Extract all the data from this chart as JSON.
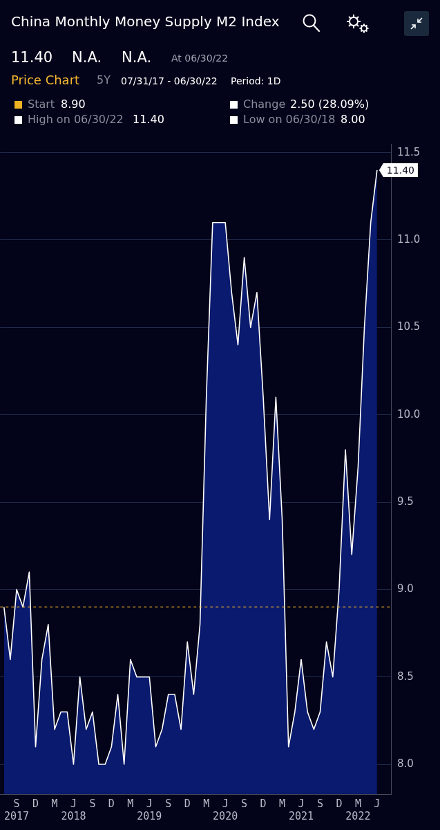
{
  "chart_data": {
    "type": "area",
    "title": "China Monthly Money Supply M2 Index",
    "annotations": [
      "11.40",
      "N.A.",
      "N.A.",
      "At 06/30/22",
      "Price Chart",
      "5Y",
      "07/31/17 - 06/30/22",
      "Period: 1D",
      "Start",
      "8.90",
      "Change",
      "2.50 (28.09%)",
      "High on 06/30/22",
      "11.40",
      "Low on 06/30/18",
      "8.00"
    ],
    "categories": [
      null,
      null,
      "S\n2017",
      null,
      null,
      "D",
      null,
      null,
      "M",
      null,
      null,
      "J\n2018",
      null,
      null,
      "S",
      null,
      null,
      "D",
      null,
      null,
      "M",
      null,
      null,
      "J\n2019",
      null,
      null,
      "S",
      null,
      null,
      "D",
      null,
      null,
      "M",
      null,
      null,
      "J\n2020",
      null,
      null,
      "S",
      null,
      null,
      "D",
      null,
      null,
      "M",
      null,
      null,
      "J\n2021",
      null,
      null,
      "S",
      null,
      null,
      "D",
      null,
      null,
      "M\n2022",
      null,
      null,
      "J"
    ],
    "series": [
      {
        "color": "#0a1a6e",
        "values": [
          8.9,
          8.6,
          9.0,
          8.9,
          9.1,
          8.1,
          8.6,
          8.8,
          8.2,
          8.3,
          8.3,
          8.0,
          8.5,
          8.2,
          8.3,
          8.0,
          8.0,
          8.1,
          8.4,
          8.0,
          8.6,
          8.5,
          8.5,
          8.5,
          8.1,
          8.2,
          8.4,
          8.4,
          8.2,
          8.7,
          8.4,
          8.8,
          10.1,
          11.1,
          11.1,
          11.1,
          10.7,
          10.4,
          10.9,
          10.5,
          10.7,
          10.1,
          9.4,
          10.1,
          9.4,
          8.1,
          8.3,
          8.6,
          8.3,
          8.2,
          8.3,
          8.7,
          8.5,
          9.0,
          9.8,
          9.2,
          9.7,
          10.5,
          11.1,
          11.4
        ],
        "value_labels": [
          null,
          null,
          null,
          null,
          null,
          null,
          null,
          null,
          null,
          null,
          null,
          null,
          null,
          null,
          null,
          null,
          null,
          null,
          null,
          null,
          null,
          null,
          null,
          null,
          null,
          null,
          null,
          null,
          null,
          null,
          null,
          null,
          null,
          null,
          null,
          null,
          null,
          null,
          null,
          null,
          null,
          null,
          null,
          null,
          null,
          null,
          null,
          null,
          null,
          null,
          null,
          null,
          null,
          null,
          null,
          null,
          null,
          null,
          null,
          "11.40"
        ]
      }
    ],
    "ylim": [
      7.83,
      11.55
    ],
    "yticks": [
      {
        "value": 8,
        "label": "8.0"
      },
      {
        "value": 8.5,
        "label": "8.5"
      },
      {
        "value": 9,
        "label": "9.0"
      },
      {
        "value": 9.5,
        "label": "9.5"
      },
      {
        "value": 10,
        "label": "10.0"
      },
      {
        "value": 10.5,
        "label": "10.5"
      },
      {
        "value": 11,
        "label": "11.0"
      },
      {
        "value": 11.5,
        "label": "11.5"
      }
    ],
    "ref_lines": [
      {
        "axis": "y",
        "value": 8.9,
        "color": "#f0b323",
        "line_style": "dashed"
      }
    ],
    "grid": "y",
    "legend": false,
    "marker": "none"
  }
}
